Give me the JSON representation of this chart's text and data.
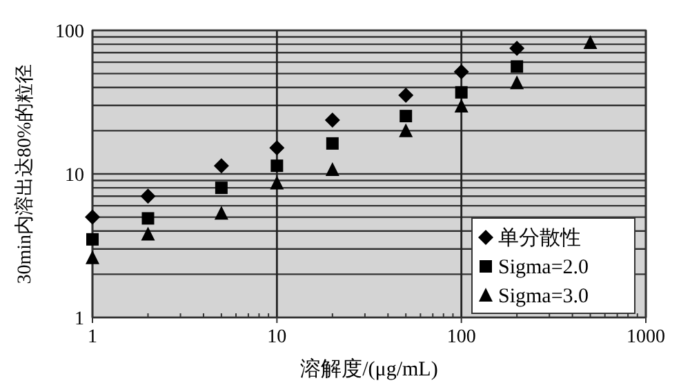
{
  "chart_data": {
    "type": "scatter",
    "xlabel": "溶解度/(μg/mL)",
    "ylabel": "30min内溶出达80%的粒径",
    "log": "xy",
    "xlim": [
      1,
      1000
    ],
    "ylim": [
      1,
      100
    ],
    "xticks": [
      1,
      10,
      100,
      1000
    ],
    "yticks": [
      1,
      10,
      100
    ],
    "grid": true,
    "legend": "bottom right",
    "series": [
      {
        "name": "单分散性",
        "color": "#000000",
        "marker": "diamond",
        "x": [
          1,
          2,
          5,
          10,
          20,
          50,
          100,
          200
        ],
        "values": [
          5.0,
          7.0,
          11.4,
          15.2,
          23.7,
          35.3,
          51.5,
          75
        ]
      },
      {
        "name": "Sigma=2.0",
        "color": "#000000",
        "marker": "square",
        "x": [
          1,
          2,
          5,
          10,
          20,
          50,
          100,
          200
        ],
        "values": [
          3.5,
          4.9,
          8.0,
          11.4,
          16.3,
          25.3,
          37,
          56
        ]
      },
      {
        "name": "Sigma=3.0",
        "color": "#000000",
        "marker": "triangle",
        "x": [
          1,
          2,
          5,
          10,
          20,
          50,
          100,
          200,
          500
        ],
        "values": [
          2.6,
          3.8,
          5.3,
          8.6,
          10.7,
          19.9,
          29.6,
          43,
          82
        ]
      }
    ]
  }
}
